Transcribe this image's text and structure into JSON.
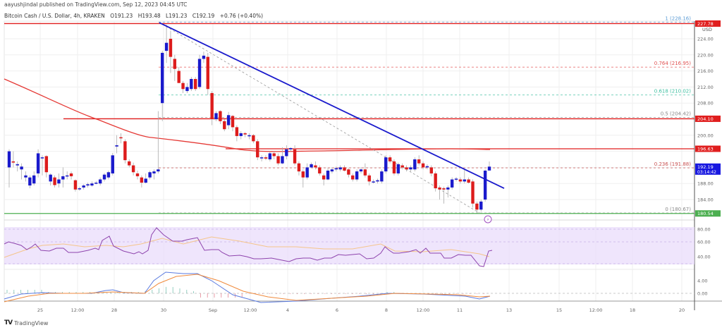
{
  "header": {
    "publisher_line": "aayushjindal published on TradingView.com, Sep 12, 2023 04:45 UTC",
    "symbol": "Bitcoin Cash / U.S. Dollar, 4h, KRAKEN",
    "open": "O191.23",
    "high": "H193.48",
    "low": "L191.23",
    "close": "C192.19",
    "change": "+0.76 (+0.40%)"
  },
  "footer": {
    "brand": "TradingView",
    "logo_glyph": "TV"
  },
  "price_axis": {
    "currency": "USD",
    "ticks": [
      "224.00",
      "220.00",
      "216.00",
      "212.00",
      "208.00",
      "200.00",
      "188.00",
      "184.00"
    ],
    "badges": [
      {
        "label": "227.78",
        "color": "#e01e1e",
        "price": 227.78
      },
      {
        "label": "204.10",
        "color": "#e01e1e",
        "price": 204.1
      },
      {
        "label": "196.63",
        "color": "#e01e1e",
        "price": 196.63
      },
      {
        "label": "192.19",
        "sublabel": "03:14:42",
        "color": "#1818e0",
        "price": 192.19
      },
      {
        "label": "180.54",
        "color": "#4caf50",
        "price": 180.54
      }
    ]
  },
  "indicator_axis": {
    "rsi_ticks": [
      "80.00",
      "60.00",
      "40.00"
    ],
    "macd_ticks": [
      "4.00",
      "0.00"
    ]
  },
  "time_axis": {
    "labels": [
      "25",
      "12:00",
      "28",
      "30",
      "Sep",
      "12:00",
      "4",
      "6",
      "8",
      "12:00",
      "11",
      "13",
      "15",
      "12:00",
      "18",
      "20"
    ]
  },
  "fib_levels": [
    {
      "label": "1 (228.16)",
      "price": 228.16,
      "color": "#5b9bd5"
    },
    {
      "label": "0.764 (216.95)",
      "price": 216.95,
      "color": "#e05050"
    },
    {
      "label": "0.618 (210.02)",
      "price": 210.02,
      "color": "#3cbfa0"
    },
    {
      "label": "0.5 (204.42)",
      "price": 204.42,
      "color": "#888888"
    },
    {
      "label": "0.236 (191.88)",
      "price": 191.88,
      "color": "#c85050"
    },
    {
      "label": "0 (180.67)",
      "price": 180.67,
      "color": "#888888"
    }
  ],
  "colors": {
    "up_candle": "#1a1acc",
    "down_candle": "#dd1c1c",
    "trendline": "#1a1acc",
    "horizontal_resistance": "#e01e1e",
    "horizontal_support": "#4caf50",
    "sma100": "#e53935",
    "rsi_line": "#8e44ad",
    "rsi_band": "#eadcfb",
    "rsi_signal": "#f5c58a",
    "macd_line": "#5b7be0",
    "macd_signal": "#f08a3c"
  },
  "chart_data": {
    "type": "candlestick",
    "title": "Bitcoin Cash / U.S. Dollar, 4h, KRAKEN",
    "xlabel": "",
    "ylabel": "USD",
    "ylim": [
      178,
      229
    ],
    "grid": true,
    "x_labels": [
      "25",
      "12:00",
      "28",
      "30",
      "Sep",
      "12:00",
      "4",
      "6",
      "8",
      "12:00",
      "11",
      "13",
      "15",
      "12:00",
      "18",
      "20"
    ],
    "candles": [
      [
        192.0,
        196.0,
        187.0,
        196.5
      ],
      [
        193.5,
        193.2,
        192.0,
        196.0
      ],
      [
        192.5,
        192.8,
        191.0,
        193.5
      ],
      [
        191.5,
        192.2,
        189.0,
        193.0
      ],
      [
        189.5,
        190.0,
        188.5,
        191.0
      ],
      [
        187.5,
        189.5,
        186.8,
        190.0
      ],
      [
        188.0,
        190.0,
        187.5,
        191.0
      ],
      [
        190.5,
        195.5,
        189.5,
        196.5
      ],
      [
        194.5,
        194.5,
        190.0,
        195.0
      ],
      [
        194.8,
        190.8,
        189.5,
        195.0
      ],
      [
        188.5,
        190.2,
        187.5,
        190.5
      ],
      [
        189.5,
        187.6,
        187.0,
        190.0
      ],
      [
        188.0,
        189.0,
        187.0,
        190.5
      ],
      [
        189.0,
        189.8,
        187.0,
        192.0
      ],
      [
        190.0,
        190.0,
        189.0,
        191.0
      ],
      [
        190.5,
        189.8,
        189.0,
        191.0
      ],
      [
        188.8,
        186.5,
        186.0,
        189.0
      ],
      [
        186.8,
        186.8,
        186.2,
        187.2
      ],
      [
        187.0,
        187.5,
        186.5,
        187.8
      ],
      [
        187.5,
        187.8,
        187.0,
        188.2
      ],
      [
        187.5,
        188.0,
        187.2,
        188.5
      ],
      [
        188.2,
        188.2,
        187.8,
        188.6
      ],
      [
        188.0,
        189.0,
        187.5,
        189.5
      ],
      [
        189.0,
        190.2,
        188.5,
        190.6
      ],
      [
        189.5,
        190.8,
        189.0,
        191.2
      ],
      [
        190.5,
        195.0,
        190.0,
        195.6
      ],
      [
        197.2,
        197.5,
        195.5,
        200.0
      ],
      [
        199.5,
        199.4,
        198.0,
        200.5
      ],
      [
        198.5,
        193.8,
        193.0,
        199.0
      ],
      [
        193.5,
        192.5,
        192.0,
        194.0
      ],
      [
        192.5,
        190.8,
        190.0,
        193.2
      ],
      [
        190.5,
        189.8,
        189.0,
        191.2
      ],
      [
        189.5,
        188.2,
        187.0,
        190.0
      ],
      [
        188.2,
        189.2,
        188.0,
        190.5
      ],
      [
        189.5,
        190.8,
        189.0,
        191.2
      ],
      [
        190.5,
        191.0,
        189.0,
        191.5
      ],
      [
        191.0,
        191.5,
        190.5,
        206.0
      ],
      [
        208.0,
        220.5,
        203.5,
        221.0
      ],
      [
        221.0,
        223.0,
        218.0,
        227.5
      ],
      [
        224.0,
        219.5,
        215.5,
        226.0
      ],
      [
        219.0,
        216.5,
        213.5,
        220.0
      ],
      [
        216.0,
        213.0,
        213.0,
        217.0
      ],
      [
        213.0,
        211.5,
        210.5,
        213.5
      ],
      [
        211.0,
        212.0,
        210.5,
        213.0
      ],
      [
        211.5,
        214.0,
        211.0,
        214.5
      ],
      [
        214.0,
        211.5,
        211.0,
        214.5
      ],
      [
        212.0,
        219.0,
        211.5,
        220.0
      ],
      [
        219.0,
        219.8,
        218.0,
        220.8
      ],
      [
        219.5,
        211.5,
        210.0,
        220.5
      ],
      [
        210.5,
        204.0,
        202.5,
        211.0
      ],
      [
        204.0,
        205.5,
        203.5,
        206.0
      ],
      [
        206.0,
        203.5,
        202.8,
        206.2
      ],
      [
        203.5,
        201.5,
        201.0,
        204.0
      ],
      [
        202.5,
        205.0,
        201.5,
        205.8
      ],
      [
        204.8,
        202.0,
        201.0,
        205.0
      ],
      [
        202.0,
        199.8,
        198.5,
        202.5
      ],
      [
        199.8,
        200.5,
        199.0,
        201.0
      ],
      [
        200.5,
        200.2,
        199.5,
        200.8
      ],
      [
        200.0,
        200.0,
        199.0,
        200.5
      ],
      [
        200.0,
        198.5,
        198.0,
        200.3
      ],
      [
        198.5,
        194.5,
        193.8,
        199.0
      ],
      [
        194.5,
        194.5,
        193.5,
        195.0
      ],
      [
        194.5,
        194.2,
        193.8,
        195.0
      ],
      [
        194.0,
        195.5,
        193.5,
        196.0
      ],
      [
        195.5,
        194.8,
        194.0,
        196.0
      ],
      [
        194.8,
        193.0,
        192.5,
        195.5
      ],
      [
        193.0,
        194.8,
        192.8,
        197.0
      ],
      [
        194.8,
        196.5,
        194.0,
        197.5
      ],
      [
        196.5,
        196.8,
        196.0,
        197.0
      ],
      [
        196.5,
        193.0,
        192.5,
        197.5
      ],
      [
        193.0,
        191.0,
        190.0,
        193.5
      ],
      [
        191.0,
        189.5,
        187.0,
        191.5
      ],
      [
        189.5,
        192.0,
        189.0,
        193.0
      ],
      [
        192.0,
        192.8,
        191.8,
        193.2
      ],
      [
        192.5,
        192.0,
        191.5,
        193.5
      ],
      [
        192.0,
        190.5,
        190.0,
        192.5
      ],
      [
        190.0,
        189.0,
        187.5,
        190.5
      ],
      [
        189.0,
        191.2,
        188.8,
        191.8
      ],
      [
        191.0,
        191.5,
        190.5,
        192.0
      ],
      [
        191.5,
        191.8,
        191.0,
        192.2
      ],
      [
        191.5,
        192.0,
        191.0,
        192.5
      ],
      [
        192.0,
        191.2,
        191.0,
        192.5
      ],
      [
        191.5,
        190.2,
        189.5,
        191.8
      ],
      [
        190.0,
        189.0,
        188.5,
        190.5
      ],
      [
        189.0,
        191.0,
        188.5,
        191.5
      ],
      [
        191.0,
        191.5,
        190.5,
        192.0
      ],
      [
        191.5,
        190.0,
        189.5,
        193.0
      ],
      [
        190.0,
        188.5,
        187.5,
        190.5
      ],
      [
        188.5,
        188.5,
        188.0,
        189.0
      ],
      [
        188.5,
        188.8,
        188.0,
        189.2
      ],
      [
        188.5,
        191.0,
        188.0,
        191.5
      ],
      [
        191.0,
        194.5,
        190.5,
        195.0
      ],
      [
        194.5,
        193.5,
        193.0,
        195.0
      ],
      [
        193.5,
        190.5,
        190.0,
        194.0
      ],
      [
        190.5,
        192.8,
        190.0,
        193.2
      ],
      [
        192.5,
        192.0,
        191.5,
        193.0
      ],
      [
        192.0,
        191.5,
        191.0,
        192.5
      ],
      [
        191.5,
        192.0,
        191.0,
        192.5
      ],
      [
        191.5,
        194.0,
        191.0,
        194.5
      ],
      [
        194.0,
        193.0,
        192.5,
        195.0
      ],
      [
        193.0,
        192.0,
        191.5,
        193.5
      ],
      [
        192.0,
        192.3,
        191.5,
        192.8
      ],
      [
        192.0,
        190.5,
        189.8,
        192.5
      ],
      [
        190.5,
        186.8,
        186.0,
        191.0
      ],
      [
        187.0,
        186.5,
        184.0,
        187.5
      ],
      [
        186.8,
        186.5,
        183.0,
        187.2
      ],
      [
        186.5,
        187.0,
        184.5,
        187.5
      ],
      [
        187.0,
        189.0,
        186.5,
        189.5
      ],
      [
        189.0,
        189.2,
        188.5,
        189.6
      ],
      [
        189.0,
        188.5,
        188.0,
        189.5
      ],
      [
        188.5,
        189.0,
        188.0,
        191.5
      ],
      [
        189.0,
        188.2,
        188.0,
        189.5
      ],
      [
        188.5,
        183.0,
        182.0,
        189.0
      ],
      [
        183.0,
        181.5,
        180.7,
        183.5
      ],
      [
        181.5,
        183.5,
        181.0,
        184.0
      ],
      [
        184.0,
        191.2,
        183.5,
        191.5
      ],
      [
        191.23,
        192.19,
        191.23,
        193.48
      ]
    ],
    "candle_format": "[open, close, low, high]",
    "annotations": {
      "horizontal_levels": [
        227.78,
        204.1,
        196.63,
        180.54
      ],
      "descending_trendline": {
        "from": [
          228.0,
          "Aug 30"
        ],
        "to": [
          186.8,
          "Sep 12"
        ]
      },
      "sma_100": "red curve declining from ~214 to ~196.6",
      "fibonacci_retracement": [
        {
          "level": 1,
          "price": 228.16
        },
        {
          "level": 0.764,
          "price": 216.95
        },
        {
          "level": 0.618,
          "price": 210.02
        },
        {
          "level": 0.5,
          "price": 204.42
        },
        {
          "level": 0.236,
          "price": 191.88
        },
        {
          "level": 0,
          "price": 180.67
        }
      ]
    },
    "subcharts": [
      {
        "name": "RSI",
        "ylim": [
          20,
          90
        ],
        "ticks": [
          80,
          60,
          40
        ],
        "band": [
          30,
          70
        ],
        "last_value": 58
      },
      {
        "name": "MACD",
        "ticks": [
          4,
          0
        ],
        "last_value": -0.5
      }
    ]
  }
}
